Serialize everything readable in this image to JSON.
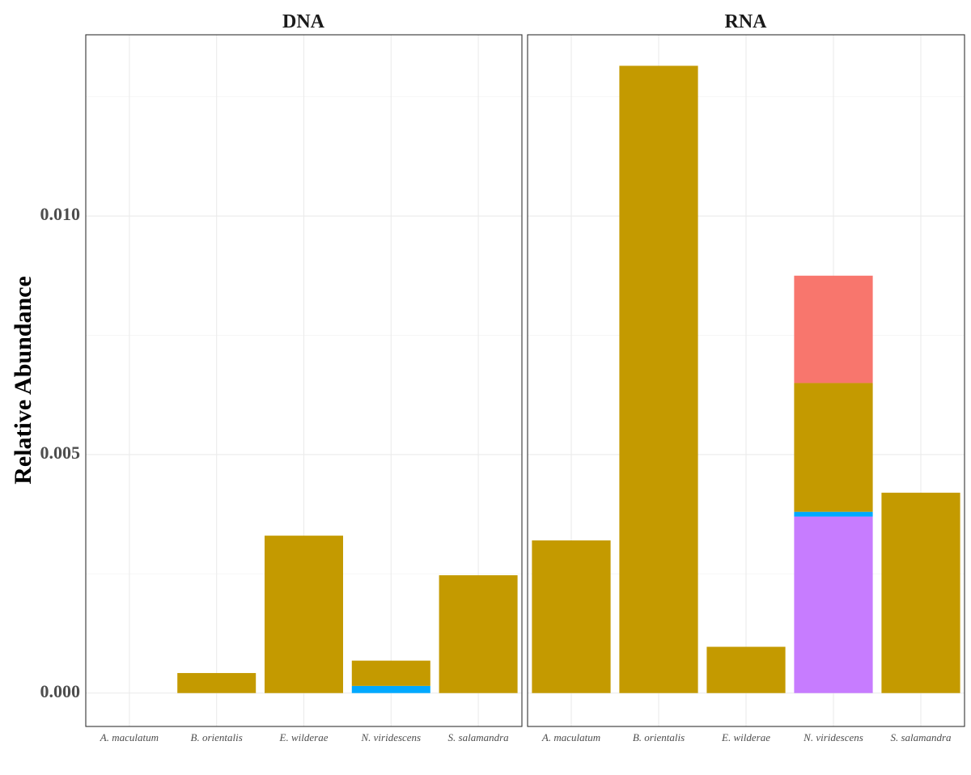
{
  "chart_data": {
    "type": "bar",
    "stacked": true,
    "ylabel": "Relative Abundance",
    "xlabel": "",
    "ylim": [
      -0.0007,
      0.0138
    ],
    "yticks": [
      0.0,
      0.005,
      0.01
    ],
    "ytick_labels": [
      "0.000",
      "0.005",
      "0.010"
    ],
    "grid": true,
    "categories": [
      "A. maculatum",
      "B. orientalis",
      "E. wilderae",
      "N. viridescens",
      "S. salamandra"
    ],
    "segment_colors": [
      "#C49A00",
      "#F8766D",
      "#00A9FF",
      "#C77CFF"
    ],
    "panels": [
      {
        "title": "DNA",
        "series": [
          {
            "values": [
              0,
              0,
              0,
              0.00015,
              0
            ],
            "color": "#00A9FF"
          },
          {
            "values": [
              0,
              0.00042,
              0.0033,
              0.00053,
              0.00247
            ],
            "color": "#C49A00"
          }
        ]
      },
      {
        "title": "RNA",
        "series": [
          {
            "values": [
              0,
              0,
              0,
              0.0037,
              0
            ],
            "color": "#C77CFF"
          },
          {
            "values": [
              0,
              0,
              0,
              0.0001,
              0
            ],
            "color": "#00A9FF"
          },
          {
            "values": [
              0.0032,
              0.01315,
              0.00097,
              0.0027,
              0.0042
            ],
            "color": "#C49A00"
          },
          {
            "values": [
              0,
              0,
              0,
              0.00225,
              0
            ],
            "color": "#F8766D"
          }
        ]
      }
    ]
  }
}
